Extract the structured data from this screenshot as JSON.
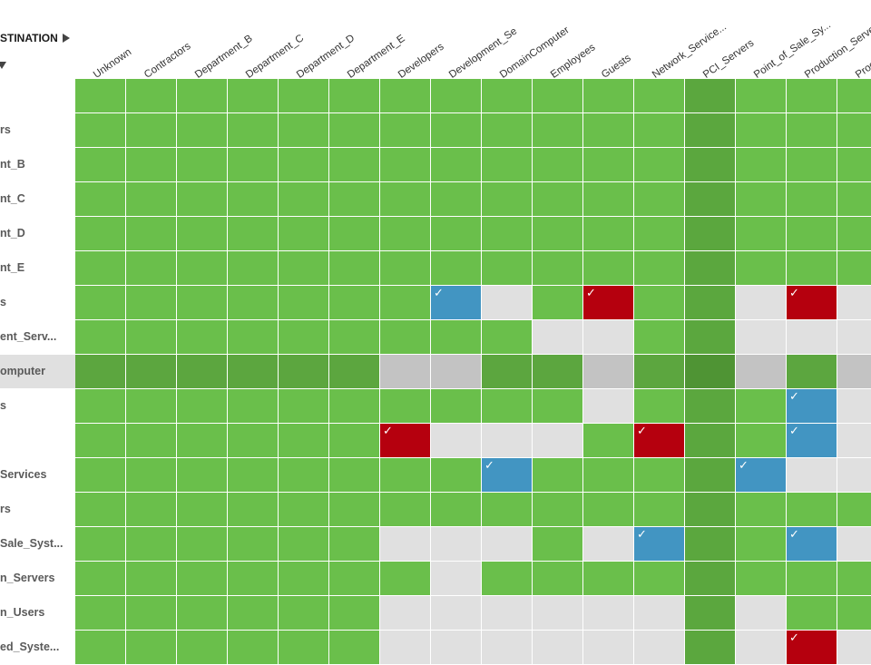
{
  "header": {
    "destination_label": "STINATION"
  },
  "columns": [
    "Unknown",
    "Contractors",
    "Department_B",
    "Department_C",
    "Department_D",
    "Department_E",
    "Developers",
    "Development_Se",
    "DomainComputer",
    "Employees",
    "Guests",
    "Network_Service...",
    "PCI_Servers",
    "Point_of_Sale_Sy...",
    "Production_Serve",
    "Produ"
  ],
  "rows": [
    {
      "label": "",
      "cells": "GGGGGGGGGGGGPGGG"
    },
    {
      "label": "rs",
      "cells": "GGGGGGGGGGGGPGGG"
    },
    {
      "label": "nt_B",
      "cells": "GGGGGGGGGGGGPGGG"
    },
    {
      "label": "nt_C",
      "cells": "GGGGGGGGGGGGPGGG"
    },
    {
      "label": "nt_D",
      "cells": "GGGGGGGGGGGGPGGG"
    },
    {
      "label": "nt_E",
      "cells": "GGGGGGGGGGGGPGGG"
    },
    {
      "label": "s",
      "cells": "GGGGGGGBWGRGPWRW"
    },
    {
      "label": "ent_Serv...",
      "cells": "GGGGGGGGGWWGPWWW"
    },
    {
      "label": "omputer",
      "cells": "DDDDDDSSDDSDQSDS",
      "highlight": true
    },
    {
      "label": "s",
      "cells": "GGGGGGGGGGWGPGBW"
    },
    {
      "label": "",
      "cells": "GGGGGGRWWWGRPGBW"
    },
    {
      "label": "Services",
      "cells": "GGGGGGGGBGGGPBWW"
    },
    {
      "label": "rs",
      "cells": "GGGGGGGGGGGGPGGG"
    },
    {
      "label": "Sale_Syst...",
      "cells": "GGGGGGWWWGWBPGBW"
    },
    {
      "label": "n_Servers",
      "cells": "GGGGGGGWGGGGPGGG"
    },
    {
      "label": "n_Users",
      "cells": "GGGGGGWWWWWWPWGG"
    },
    {
      "label": "ed_Syste...",
      "cells": "GGGGGGWWWWWWPWRW"
    }
  ],
  "colors": {
    "G": "#6abf4b",
    "P": "#5ba73e",
    "D": "#5ca63f",
    "Q": "#4f9434",
    "S": "#c3c3c3",
    "W": "#e0e0e0",
    "B": "#4295c2",
    "R": "#b5000e"
  },
  "check_icon": "checkmark-icon"
}
